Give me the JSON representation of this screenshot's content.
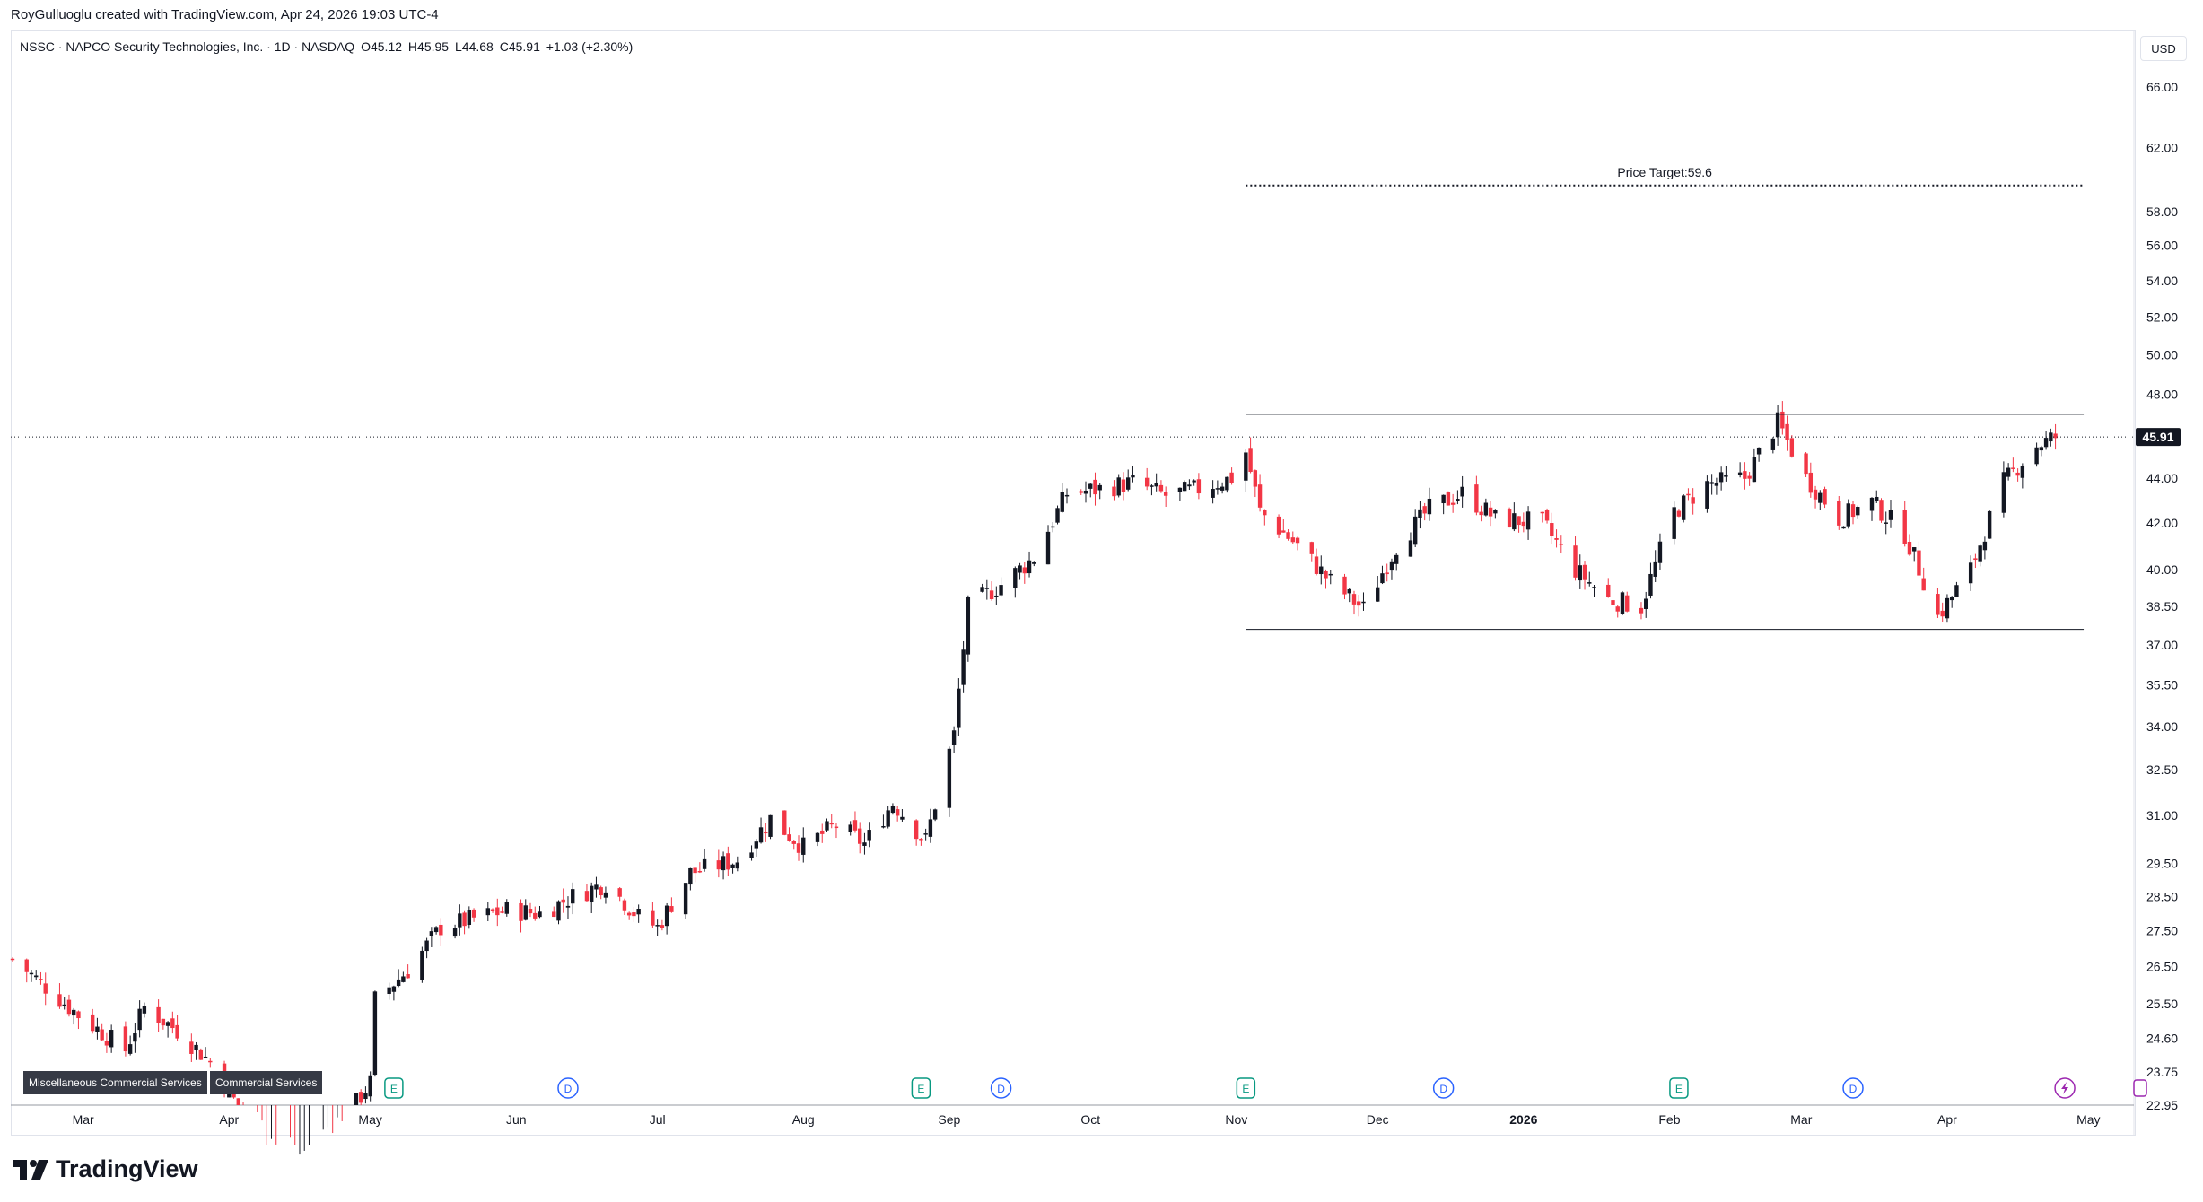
{
  "header": {
    "credit": "RoyGulluoglu created with TradingView.com, Apr 24, 2026 19:03 UTC-4"
  },
  "symbol_info": {
    "name": "NSSC · NAPCO Security Technologies, Inc. · 1D · NASDAQ",
    "open_label": "O",
    "open": "45.12",
    "high_label": "H",
    "high": "45.95",
    "low_label": "L",
    "low": "44.68",
    "close_label": "C",
    "close": "45.91",
    "change": "+1.03 (+2.30%)"
  },
  "currency": "USD",
  "brand": "TradingView",
  "sector_tags": [
    "Miscellaneous Commercial Services",
    "Commercial Services"
  ],
  "colors": {
    "up": "#131722",
    "down": "#f23645",
    "grid": "#f0f3fa",
    "price_tag_bg": "#131722",
    "earnings": "#089981",
    "dividend": "#2962ff",
    "split": "#9c27b0"
  },
  "chart_data": {
    "type": "candlestick",
    "title": "",
    "xlabel": "",
    "ylabel": "",
    "y_scale": "log",
    "ylim": [
      22.95,
      70.0
    ],
    "x_ticks": [
      "Mar",
      "Apr",
      "May",
      "Jun",
      "Jul",
      "Aug",
      "Sep",
      "Oct",
      "Nov",
      "Dec",
      "2026",
      "Feb",
      "Mar",
      "Apr",
      "May"
    ],
    "x_tick_dates": [
      "2025-03-01",
      "2025-04-01",
      "2025-05-01",
      "2025-06-01",
      "2025-07-01",
      "2025-08-01",
      "2025-09-01",
      "2025-10-01",
      "2025-11-01",
      "2025-12-01",
      "2026-01-01",
      "2026-02-01",
      "2026-03-01",
      "2026-04-01",
      "2026-05-01"
    ],
    "y_ticks": [
      "66.00",
      "62.00",
      "58.00",
      "56.00",
      "54.00",
      "52.00",
      "50.00",
      "48.00",
      "44.00",
      "42.00",
      "40.00",
      "38.50",
      "37.00",
      "35.50",
      "34.00",
      "32.50",
      "31.00",
      "29.50",
      "28.50",
      "27.50",
      "26.50",
      "25.50",
      "24.60",
      "23.75",
      "22.95"
    ],
    "last_price": "45.91",
    "anchors": [
      [
        "2025-02-14",
        26.7
      ],
      [
        "2025-02-28",
        25.2
      ],
      [
        "2025-03-10",
        24.3
      ],
      [
        "2025-03-14",
        25.4
      ],
      [
        "2025-03-21",
        24.8
      ],
      [
        "2025-03-28",
        24.0
      ],
      [
        "2025-04-04",
        22.7
      ],
      [
        "2025-04-15",
        21.5
      ],
      [
        "2025-04-25",
        22.5
      ],
      [
        "2025-05-01",
        23.5
      ],
      [
        "2025-05-02",
        25.6
      ],
      [
        "2025-05-09",
        26.4
      ],
      [
        "2025-05-16",
        27.6
      ],
      [
        "2025-05-30",
        28.1
      ],
      [
        "2025-06-06",
        28.0
      ],
      [
        "2025-06-13",
        28.5
      ],
      [
        "2025-06-20",
        28.9
      ],
      [
        "2025-06-27",
        27.9
      ],
      [
        "2025-07-01",
        27.6
      ],
      [
        "2025-07-08",
        29.2
      ],
      [
        "2025-07-18",
        29.6
      ],
      [
        "2025-07-25",
        30.9
      ],
      [
        "2025-08-01",
        30.0
      ],
      [
        "2025-08-08",
        30.7
      ],
      [
        "2025-08-14",
        30.1
      ],
      [
        "2025-08-20",
        31.4
      ],
      [
        "2025-08-27",
        30.2
      ],
      [
        "2025-09-02",
        33.7
      ],
      [
        "2025-09-05",
        38.5
      ],
      [
        "2025-09-12",
        39.4
      ],
      [
        "2025-09-19",
        40.5
      ],
      [
        "2025-09-26",
        43.3
      ],
      [
        "2025-10-03",
        43.5
      ],
      [
        "2025-10-10",
        43.8
      ],
      [
        "2025-10-17",
        43.2
      ],
      [
        "2025-10-24",
        43.5
      ],
      [
        "2025-10-31",
        44.0
      ],
      [
        "2025-11-03",
        45.2
      ],
      [
        "2025-11-06",
        42.5
      ],
      [
        "2025-11-14",
        41.0
      ],
      [
        "2025-11-21",
        39.5
      ],
      [
        "2025-11-28",
        38.4
      ],
      [
        "2025-12-05",
        41.0
      ],
      [
        "2025-12-12",
        42.6
      ],
      [
        "2025-12-19",
        43.3
      ],
      [
        "2025-12-26",
        42.2
      ],
      [
        "2026-01-05",
        42.0
      ],
      [
        "2026-01-12",
        40.0
      ],
      [
        "2026-01-19",
        38.8
      ],
      [
        "2026-01-26",
        38.5
      ],
      [
        "2026-02-02",
        42.5
      ],
      [
        "2026-02-09",
        43.7
      ],
      [
        "2026-02-17",
        44.0
      ],
      [
        "2026-02-24",
        46.6
      ],
      [
        "2026-03-02",
        44.0
      ],
      [
        "2026-03-09",
        42.2
      ],
      [
        "2026-03-16",
        42.9
      ],
      [
        "2026-03-23",
        41.5
      ],
      [
        "2026-03-30",
        38.1
      ],
      [
        "2026-04-06",
        40.0
      ],
      [
        "2026-04-13",
        43.8
      ],
      [
        "2026-04-20",
        45.5
      ],
      [
        "2026-04-24",
        45.91
      ]
    ],
    "annotations": {
      "price_target_label": "Price Target:59.6",
      "price_target": 59.6,
      "range_top": 47.0,
      "range_bottom": 37.6,
      "range_start": "2025-11-03",
      "range_end": "2026-04-30"
    },
    "events": [
      {
        "type": "E",
        "date": "2025-05-06"
      },
      {
        "type": "D",
        "date": "2025-06-12"
      },
      {
        "type": "E",
        "date": "2025-08-26"
      },
      {
        "type": "D",
        "date": "2025-09-12"
      },
      {
        "type": "E",
        "date": "2025-11-03"
      },
      {
        "type": "D",
        "date": "2025-12-15"
      },
      {
        "type": "E",
        "date": "2026-02-03"
      },
      {
        "type": "D",
        "date": "2026-03-12"
      },
      {
        "type": "S",
        "date": "2026-04-26"
      },
      {
        "type": "S2",
        "date": "2026-05-12"
      }
    ]
  }
}
